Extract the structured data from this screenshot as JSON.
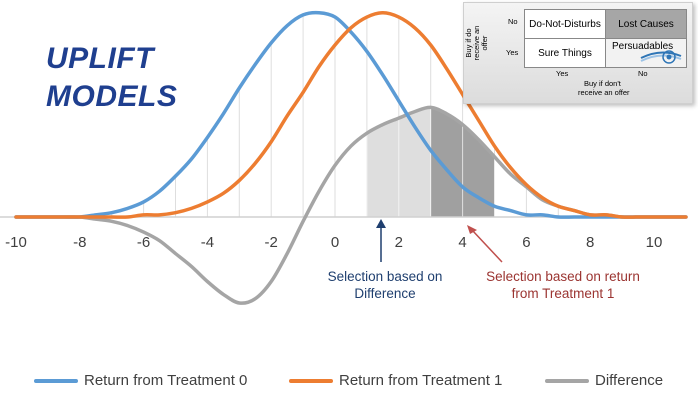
{
  "title_lines": [
    "UPLIFT",
    "MODELS"
  ],
  "colors": {
    "treatment0": "#5b9bd5",
    "treatment1": "#ed7d31",
    "difference": "#a5a5a5",
    "title": "#1f3f8f",
    "arrow_difference": "#1f3f6f",
    "arrow_treatment1": "#c0504d"
  },
  "annotations": {
    "difference_selection": [
      "Selection based on",
      "Difference"
    ],
    "treatment1_selection": [
      "Selection based on return",
      "from Treatment 1"
    ]
  },
  "inset": {
    "row_axis_label": "Buy if do receive an offer",
    "col_axis_label_1": "Buy if don't",
    "col_axis_label_2": "receive an offer",
    "row_no": "No",
    "row_yes": "Yes",
    "col_yes": "Yes",
    "col_no": "No",
    "cells": {
      "no_yes": "Do-Not-Disturbs",
      "no_no": "Lost Causes",
      "yes_yes": "Sure Things",
      "yes_no": "Persuadables"
    }
  },
  "chart_data": {
    "type": "line",
    "title": "UPLIFT MODELS",
    "xlabel": "",
    "ylabel": "",
    "xlim": [
      -10,
      11
    ],
    "x_ticks": [
      -10,
      -8,
      -6,
      -4,
      -2,
      0,
      2,
      4,
      6,
      8,
      10
    ],
    "x": [
      -10,
      -9.5,
      -9,
      -8.5,
      -8,
      -7.5,
      -7,
      -6.5,
      -6,
      -5.5,
      -5,
      -4.5,
      -4,
      -3.5,
      -3,
      -2.5,
      -2,
      -1.5,
      -1,
      -0.5,
      0,
      0.5,
      1,
      1.5,
      2,
      2.5,
      3,
      3.5,
      4,
      4.5,
      5,
      5.5,
      6,
      6.5,
      7,
      7.5,
      8,
      8.5,
      9,
      9.5,
      10,
      10.5,
      11
    ],
    "series": [
      {
        "name": "Return from Treatment 0",
        "values": [
          0.0,
          0.0,
          0.0,
          0.0,
          0.0,
          0.01,
          0.02,
          0.04,
          0.07,
          0.12,
          0.19,
          0.27,
          0.37,
          0.48,
          0.6,
          0.71,
          0.81,
          0.89,
          0.94,
          0.95,
          0.93,
          0.86,
          0.77,
          0.66,
          0.54,
          0.42,
          0.31,
          0.22,
          0.14,
          0.09,
          0.05,
          0.03,
          0.01,
          0.01,
          0.0,
          0.0,
          0.0,
          0.0,
          0.0,
          0.0,
          0.0,
          0.0,
          0.0
        ]
      },
      {
        "name": "Return from Treatment 1",
        "values": [
          0.0,
          0.0,
          0.0,
          0.0,
          0.0,
          0.0,
          0.0,
          0.0,
          0.01,
          0.01,
          0.02,
          0.04,
          0.07,
          0.11,
          0.17,
          0.25,
          0.35,
          0.47,
          0.58,
          0.7,
          0.8,
          0.88,
          0.93,
          0.95,
          0.93,
          0.88,
          0.8,
          0.69,
          0.57,
          0.45,
          0.33,
          0.23,
          0.15,
          0.09,
          0.05,
          0.03,
          0.01,
          0.01,
          0.0,
          0.0,
          0.0,
          0.0,
          0.0
        ]
      },
      {
        "name": "Difference",
        "values": [
          0.0,
          0.0,
          0.0,
          0.0,
          0.0,
          -0.01,
          -0.02,
          -0.04,
          -0.07,
          -0.11,
          -0.17,
          -0.23,
          -0.3,
          -0.36,
          -0.4,
          -0.38,
          -0.3,
          -0.17,
          -0.02,
          0.12,
          0.24,
          0.33,
          0.39,
          0.43,
          0.46,
          0.49,
          0.51,
          0.48,
          0.43,
          0.36,
          0.28,
          0.2,
          0.14,
          0.08,
          0.05,
          0.03,
          0.01,
          0.01,
          0.0,
          0.0,
          0.0,
          0.0,
          0.0
        ]
      }
    ],
    "shaded_regions": [
      {
        "x_from": 1,
        "x_to": 3,
        "shade": "light"
      },
      {
        "x_from": 3,
        "x_to": 5,
        "shade": "dark"
      }
    ],
    "grid": "vertical",
    "legend": "bottom"
  }
}
